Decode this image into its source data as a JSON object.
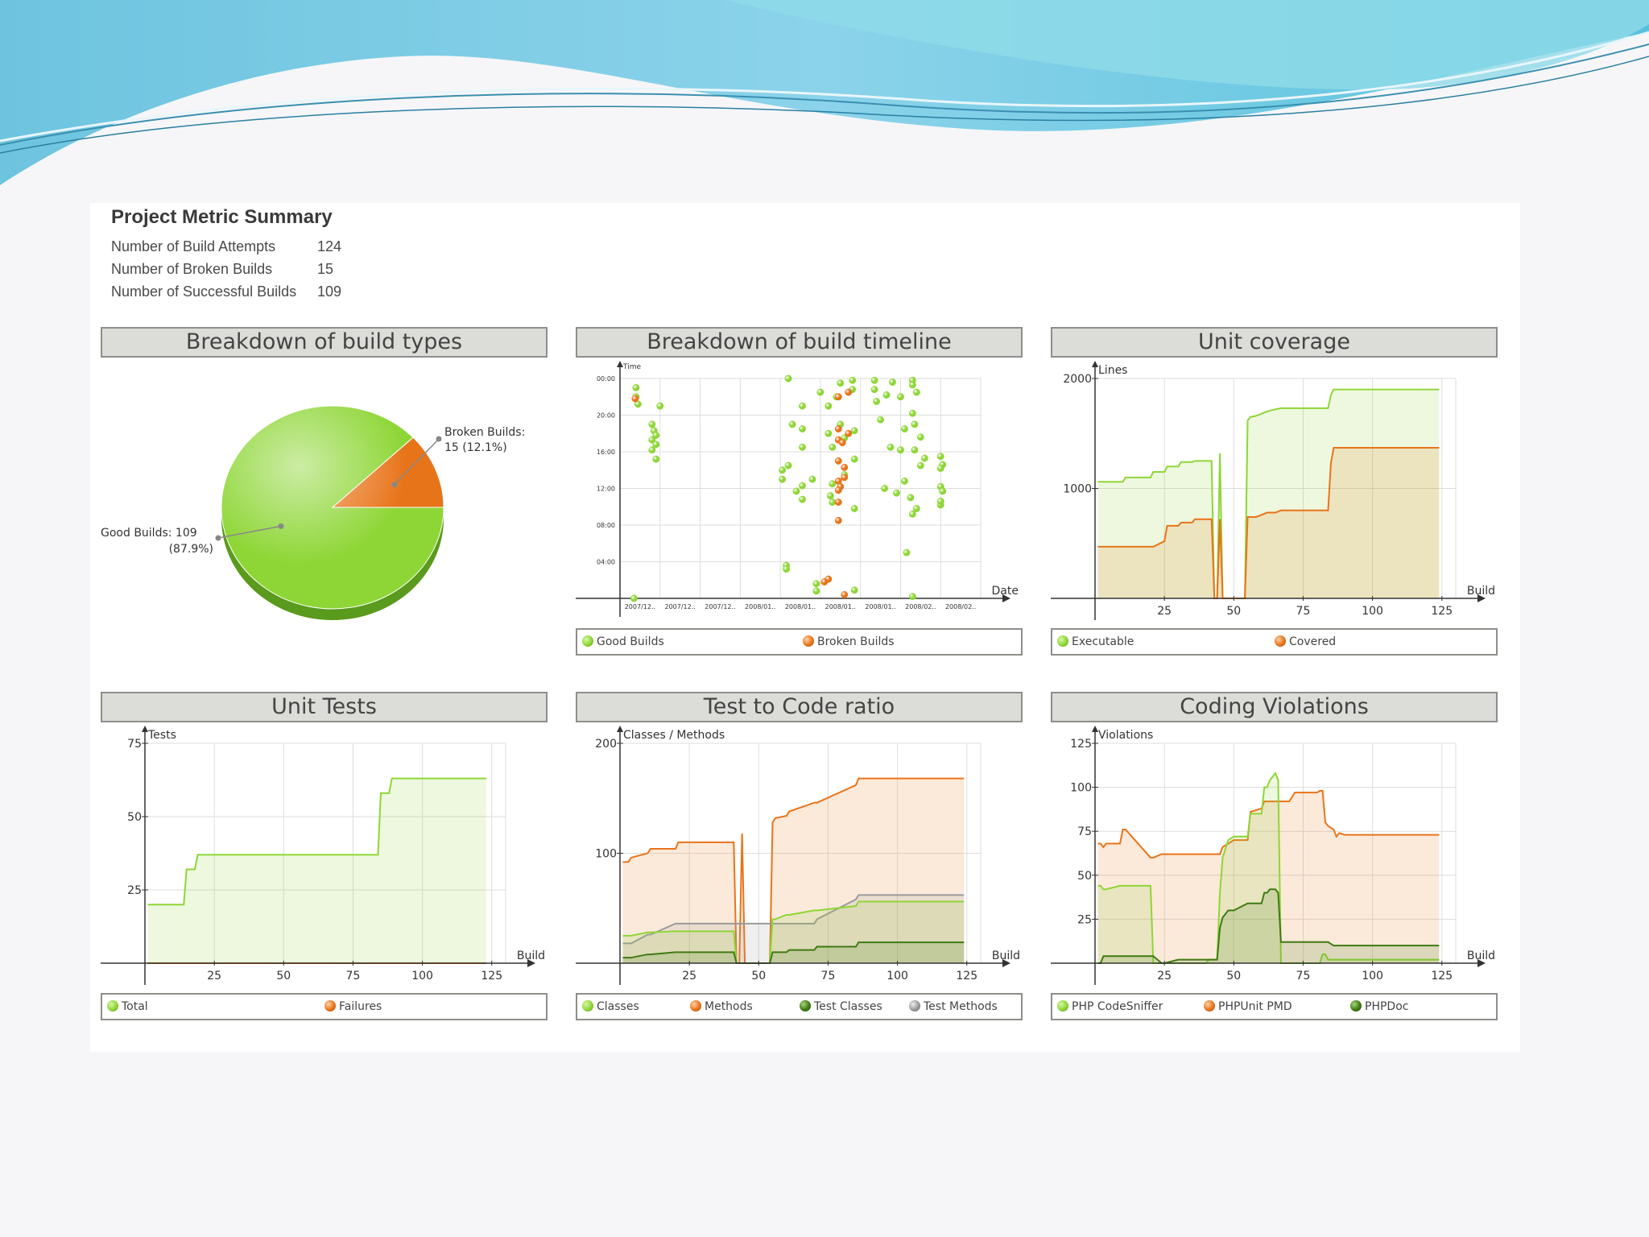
{
  "colors": {
    "green": "#8ed636",
    "orange": "#e8741a",
    "darkgreen": "#3f7a12",
    "gray": "#9a9a9a",
    "banner": "#7fd0e8"
  },
  "summary": {
    "title": "Project Metric Summary",
    "rows": [
      {
        "label": "Number of Build Attempts",
        "value": "124"
      },
      {
        "label": "Number of Broken Builds",
        "value": "15"
      },
      {
        "label": "Number of Successful Builds",
        "value": "109"
      }
    ]
  },
  "chart_data": [
    {
      "type": "pie",
      "title": "Breakdown of build types",
      "slices": [
        {
          "label": "Good Builds: 109",
          "pct": "(87.9%)",
          "value": 109,
          "color": "#8ed636"
        },
        {
          "label": "Broken Builds:",
          "pct": "15 (12.1%)",
          "value": 15,
          "color": "#e8741a"
        }
      ]
    },
    {
      "type": "scatter",
      "title": "Breakdown of build timeline",
      "xlabel": "Date",
      "ylabel": "Time",
      "x_ticks": [
        "2007/12..",
        "2007/12..",
        "2007/12..",
        "2008/01..",
        "2008/01..",
        "2008/01..",
        "2008/01..",
        "2008/02..",
        "2008/02.."
      ],
      "y_ticks": [
        "00:00",
        "20:00",
        "16:00",
        "12:00",
        "08:00",
        "04:00"
      ],
      "xlim": [
        0,
        9
      ],
      "ylim": [
        0,
        24
      ],
      "series": [
        {
          "name": "Good Builds",
          "color": "#8ed636",
          "points": [
            [
              0.35,
              0
            ],
            [
              0.4,
              23
            ],
            [
              0.4,
              22
            ],
            [
              0.45,
              21.2
            ],
            [
              1.0,
              21
            ],
            [
              0.8,
              19
            ],
            [
              0.85,
              18.3
            ],
            [
              0.9,
              17.8
            ],
            [
              0.8,
              17.3
            ],
            [
              0.9,
              16.8
            ],
            [
              0.8,
              16.2
            ],
            [
              0.9,
              15.2
            ],
            [
              4.2,
              24
            ],
            [
              4.55,
              21
            ],
            [
              4.3,
              19
            ],
            [
              4.55,
              18.5
            ],
            [
              4.55,
              16.5
            ],
            [
              4.2,
              14.5
            ],
            [
              4.05,
              14
            ],
            [
              4.05,
              13
            ],
            [
              4.55,
              12.3
            ],
            [
              4.8,
              13
            ],
            [
              4.4,
              11.7
            ],
            [
              4.55,
              10.8
            ],
            [
              4.15,
              3.6
            ],
            [
              4.15,
              3.2
            ],
            [
              4.9,
              1.6
            ],
            [
              4.9,
              0.8
            ],
            [
              5.0,
              22.5
            ],
            [
              5.5,
              23.5
            ],
            [
              5.8,
              23.8
            ],
            [
              5.8,
              22.8
            ],
            [
              5.4,
              22
            ],
            [
              5.2,
              21
            ],
            [
              5.5,
              19
            ],
            [
              5.2,
              18
            ],
            [
              5.85,
              18.3
            ],
            [
              5.6,
              17.5
            ],
            [
              5.3,
              16.5
            ],
            [
              5.85,
              15.2
            ],
            [
              5.6,
              13.5
            ],
            [
              5.3,
              12.5
            ],
            [
              5.25,
              11.2
            ],
            [
              5.3,
              10.5
            ],
            [
              5.85,
              9.8
            ],
            [
              5.85,
              0.9
            ],
            [
              6.35,
              23.8
            ],
            [
              6.8,
              23.6
            ],
            [
              6.35,
              22.8
            ],
            [
              6.65,
              22.2
            ],
            [
              6.4,
              21.5
            ],
            [
              7.0,
              22
            ],
            [
              7.3,
              23.8
            ],
            [
              7.3,
              23.3
            ],
            [
              7.4,
              22.5
            ],
            [
              7.3,
              20.2
            ],
            [
              6.5,
              19.5
            ],
            [
              7.1,
              18.5
            ],
            [
              7.35,
              19
            ],
            [
              7.5,
              17.6
            ],
            [
              6.75,
              16.5
            ],
            [
              7.0,
              16.2
            ],
            [
              7.35,
              16.2
            ],
            [
              7.6,
              15.3
            ],
            [
              7.5,
              14.5
            ],
            [
              7.1,
              12.8
            ],
            [
              6.6,
              12
            ],
            [
              6.9,
              11.5
            ],
            [
              7.25,
              11
            ],
            [
              7.4,
              9.8
            ],
            [
              7.3,
              9.2
            ],
            [
              7.15,
              5
            ],
            [
              7.3,
              0.2
            ],
            [
              8.0,
              15.5
            ],
            [
              8.05,
              14.6
            ],
            [
              8.0,
              14.2
            ],
            [
              8.0,
              12.2
            ],
            [
              8.05,
              11.7
            ],
            [
              8.0,
              10.2
            ],
            [
              8.0,
              10.6
            ]
          ]
        },
        {
          "name": "Broken Builds",
          "color": "#e8741a",
          "points": [
            [
              0.38,
              21.8
            ],
            [
              5.45,
              22
            ],
            [
              5.7,
              22.5
            ],
            [
              5.45,
              18.5
            ],
            [
              5.7,
              18
            ],
            [
              5.45,
              17.3
            ],
            [
              5.55,
              17
            ],
            [
              5.45,
              15
            ],
            [
              5.6,
              14.3
            ],
            [
              5.6,
              13.2
            ],
            [
              5.45,
              12.8
            ],
            [
              5.5,
              12.2
            ],
            [
              5.45,
              11.8
            ],
            [
              5.45,
              10.5
            ],
            [
              5.45,
              8.5
            ],
            [
              5.2,
              2.1
            ],
            [
              5.1,
              1.8
            ],
            [
              5.6,
              0.4
            ]
          ]
        }
      ]
    },
    {
      "type": "area",
      "title": "Unit coverage",
      "xlabel": "Build",
      "ylabel": "Lines",
      "x_ticks": [
        25,
        50,
        75,
        100,
        125
      ],
      "y_ticks": [
        1000,
        2000
      ],
      "xlim": [
        0,
        130
      ],
      "ylim": [
        0,
        2000
      ],
      "x": [
        1,
        10,
        11,
        20,
        21,
        25,
        26,
        30,
        31,
        35,
        36,
        42,
        43,
        44,
        45,
        46,
        47,
        48,
        54,
        55,
        56,
        58,
        60,
        62,
        65,
        67,
        84,
        85,
        86,
        90,
        124
      ],
      "series": [
        {
          "name": "Executable",
          "color": "#8ed636",
          "values": [
            1060,
            1060,
            1100,
            1100,
            1150,
            1150,
            1200,
            1200,
            1240,
            1240,
            1250,
            1250,
            0,
            0,
            1320,
            0,
            0,
            0,
            0,
            1620,
            1650,
            1660,
            1680,
            1700,
            1720,
            1730,
            1730,
            1850,
            1900,
            1900,
            1900
          ]
        },
        {
          "name": "Covered",
          "color": "#e8741a",
          "values": [
            470,
            470,
            470,
            470,
            470,
            520,
            660,
            660,
            690,
            690,
            720,
            720,
            0,
            0,
            720,
            0,
            0,
            0,
            0,
            740,
            740,
            740,
            760,
            780,
            780,
            800,
            800,
            1230,
            1370,
            1370,
            1370
          ]
        }
      ]
    },
    {
      "type": "area",
      "title": "Unit Tests",
      "xlabel": "Build",
      "ylabel": "Tests",
      "x_ticks": [
        25,
        50,
        75,
        100,
        125
      ],
      "y_ticks": [
        25,
        50,
        75
      ],
      "xlim": [
        0,
        130
      ],
      "ylim": [
        0,
        75
      ],
      "x": [
        1,
        14,
        15,
        18,
        19,
        84,
        85,
        88,
        89,
        123
      ],
      "series": [
        {
          "name": "Total",
          "color": "#8ed636",
          "values": [
            20,
            20,
            32,
            32,
            37,
            37,
            58,
            58,
            63,
            63
          ]
        },
        {
          "name": "Failures",
          "color": "#e8741a",
          "values": [
            0,
            0,
            0,
            0,
            0,
            0,
            0,
            0,
            0,
            0
          ]
        }
      ]
    },
    {
      "type": "area",
      "title": "Test to Code ratio",
      "xlabel": "Build",
      "ylabel": "Classes / Methods",
      "x_ticks": [
        25,
        50,
        75,
        100,
        125
      ],
      "y_ticks": [
        100,
        200
      ],
      "xlim": [
        0,
        130
      ],
      "ylim": [
        0,
        200
      ],
      "x": [
        1,
        3,
        4,
        10,
        11,
        20,
        21,
        41,
        42,
        43,
        44,
        45,
        46,
        54,
        55,
        56,
        60,
        61,
        70,
        71,
        85,
        86,
        124
      ],
      "series": [
        {
          "name": "Classes",
          "color": "#8ed636",
          "values": [
            25,
            25,
            25,
            28,
            28,
            29,
            29,
            29,
            0,
            0,
            0,
            0,
            0,
            0,
            40,
            40,
            44,
            44,
            48,
            48,
            52,
            56,
            56
          ]
        },
        {
          "name": "Methods",
          "color": "#e8741a",
          "values": [
            92,
            92,
            96,
            100,
            104,
            104,
            110,
            110,
            0,
            0,
            118,
            0,
            0,
            0,
            128,
            132,
            134,
            138,
            146,
            146,
            162,
            168,
            168
          ]
        },
        {
          "name": "Test Classes",
          "color": "#3f7a12",
          "values": [
            5,
            5,
            5,
            8,
            8,
            10,
            10,
            10,
            0,
            0,
            0,
            0,
            0,
            0,
            10,
            10,
            10,
            12,
            12,
            15,
            15,
            19,
            19
          ]
        },
        {
          "name": "Test Methods",
          "color": "#9a9a9a",
          "values": [
            18,
            18,
            18,
            26,
            26,
            36,
            36,
            36,
            36,
            36,
            36,
            36,
            36,
            36,
            36,
            36,
            36,
            36,
            36,
            40,
            58,
            62,
            62
          ]
        }
      ]
    },
    {
      "type": "area",
      "title": "Coding Violations",
      "xlabel": "Build",
      "ylabel": "Violations",
      "x_ticks": [
        25,
        50,
        75,
        100,
        125
      ],
      "y_ticks": [
        25,
        50,
        75,
        100,
        125
      ],
      "xlim": [
        0,
        130
      ],
      "ylim": [
        0,
        125
      ],
      "x": [
        1,
        2,
        3,
        4,
        9,
        10,
        11,
        20,
        21,
        24,
        25,
        30,
        31,
        40,
        41,
        44,
        45,
        46,
        48,
        50,
        55,
        56,
        60,
        61,
        62,
        63,
        64,
        65,
        66,
        67,
        70,
        72,
        80,
        81,
        82,
        83,
        84,
        86,
        87,
        88,
        90,
        100,
        124
      ],
      "series": [
        {
          "name": "PHP CodeSniffer",
          "color": "#8ed636",
          "values": [
            44,
            44,
            42,
            42,
            44,
            44,
            44,
            44,
            0,
            0,
            0,
            0,
            0,
            0,
            2,
            2,
            40,
            60,
            70,
            72,
            72,
            85,
            85,
            100,
            100,
            104,
            106,
            108,
            104,
            0,
            0,
            0,
            0,
            0,
            5,
            5,
            2,
            2,
            2,
            2,
            2,
            2,
            2
          ]
        },
        {
          "name": "PHPUnit PMD",
          "color": "#e8741a",
          "values": [
            68,
            68,
            66,
            68,
            68,
            76,
            76,
            60,
            60,
            62,
            62,
            62,
            62,
            62,
            62,
            62,
            62,
            66,
            68,
            70,
            70,
            86,
            88,
            92,
            92,
            92,
            92,
            92,
            92,
            92,
            92,
            97,
            97,
            98,
            98,
            80,
            78,
            76,
            72,
            74,
            73,
            73,
            73
          ]
        },
        {
          "name": "PHPDoc",
          "color": "#3f7a12",
          "values": [
            0,
            0,
            4,
            4,
            4,
            4,
            4,
            4,
            4,
            0,
            0,
            2,
            2,
            2,
            2,
            2,
            20,
            26,
            30,
            30,
            34,
            34,
            34,
            40,
            40,
            42,
            42,
            42,
            40,
            12,
            12,
            12,
            12,
            12,
            12,
            12,
            12,
            10,
            10,
            10,
            10,
            10,
            10
          ]
        }
      ]
    }
  ]
}
